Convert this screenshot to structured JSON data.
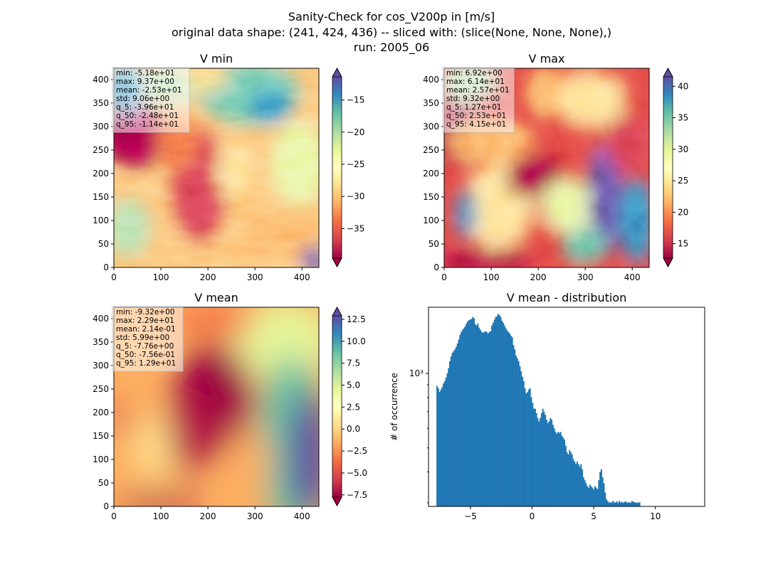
{
  "figure": {
    "title_lines": [
      "Sanity-Check for cos_V200p in [m/s]",
      "original data shape: (241, 424, 436) -- sliced with: (slice(None, None, None),)",
      "run: 2005_06"
    ]
  },
  "chart_data": [
    {
      "type": "heatmap",
      "title": "V min",
      "colormap": "Spectral",
      "xlim": [
        0,
        436
      ],
      "ylim": [
        0,
        424
      ],
      "xticks": [
        0,
        100,
        200,
        300,
        400
      ],
      "yticks": [
        0,
        50,
        100,
        150,
        200,
        250,
        300,
        350,
        400
      ],
      "colorbar": {
        "vmin": -39.6,
        "vmax": -11.4,
        "ticks": [
          -35,
          -30,
          -25,
          -20,
          -15
        ],
        "tick_labels": [
          "−35",
          "−30",
          "−25",
          "−20",
          "−15"
        ],
        "extend": "both"
      },
      "stats": [
        "min: -5.18e+01",
        "max: 9.37e+00",
        "mean: -2.53e+01",
        "std: 9.06e+00",
        "q_5: -3.96e+01",
        "q_50: -2.48e+01",
        "q_95: -1.14e+01"
      ]
    },
    {
      "type": "heatmap",
      "title": "V max",
      "colormap": "Spectral",
      "xlim": [
        0,
        436
      ],
      "ylim": [
        0,
        424
      ],
      "xticks": [
        0,
        100,
        200,
        300,
        400
      ],
      "yticks": [
        0,
        50,
        100,
        150,
        200,
        250,
        300,
        350,
        400
      ],
      "colorbar": {
        "vmin": 12.7,
        "vmax": 41.5,
        "ticks": [
          15,
          20,
          25,
          30,
          35,
          40
        ],
        "tick_labels": [
          "15",
          "20",
          "25",
          "30",
          "35",
          "40"
        ],
        "extend": "both"
      },
      "stats": [
        "min: 6.92e+00",
        "max: 6.14e+01",
        "mean: 2.57e+01",
        "std: 9.32e+00",
        "q_5: 1.27e+01",
        "q_50: 2.53e+01",
        "q_95: 4.15e+01"
      ]
    },
    {
      "type": "heatmap",
      "title": "V mean",
      "colormap": "Spectral",
      "xlim": [
        0,
        436
      ],
      "ylim": [
        0,
        424
      ],
      "xticks": [
        0,
        100,
        200,
        300,
        400
      ],
      "yticks": [
        0,
        50,
        100,
        150,
        200,
        250,
        300,
        350,
        400
      ],
      "colorbar": {
        "vmin": -7.76,
        "vmax": 12.9,
        "ticks": [
          -7.5,
          -5,
          -2.5,
          0,
          2.5,
          5,
          7.5,
          10,
          12.5
        ],
        "tick_labels": [
          "−7.5",
          "−5.0",
          "−2.5",
          "0.0",
          "2.5",
          "5.0",
          "7.5",
          "10.0",
          "12.5"
        ],
        "extend": "both"
      },
      "stats": [
        "min: -9.32e+00",
        "max: 2.29e+01",
        "mean: 2.14e-01",
        "std: 5.99e+00",
        "q_5: -7.76e+00",
        "q_50: -7.56e-01",
        "q_95: 1.29e+01"
      ]
    },
    {
      "type": "bar",
      "title": "V mean - distribution",
      "ylabel": "# of occurrence",
      "xlabel": "",
      "yscale": "log",
      "xlim": [
        -8.4,
        14.0
      ],
      "ylim": [
        290,
        1850
      ],
      "xticks": [
        -5,
        0,
        5,
        10
      ],
      "xtick_labels": [
        "−5",
        "0",
        "5",
        "10"
      ],
      "ytick_labels": [
        {
          "value": 1000,
          "label": "10³"
        }
      ],
      "bar_color": "#1f77b4",
      "bin_start": -7.76,
      "bin_width": 0.1033,
      "values": [
        890,
        870,
        840,
        860,
        880,
        910,
        930,
        960,
        1000,
        1050,
        1120,
        1170,
        1210,
        1230,
        1250,
        1280,
        1320,
        1370,
        1430,
        1470,
        1500,
        1520,
        1550,
        1590,
        1620,
        1640,
        1650,
        1660,
        1690,
        1670,
        1580,
        1560,
        1590,
        1530,
        1500,
        1470,
        1460,
        1470,
        1480,
        1470,
        1450,
        1470,
        1480,
        1560,
        1600,
        1650,
        1690,
        1700,
        1740,
        1720,
        1690,
        1630,
        1600,
        1560,
        1520,
        1490,
        1470,
        1450,
        1420,
        1400,
        1300,
        1250,
        1180,
        1150,
        1120,
        1070,
        1020,
        970,
        930,
        870,
        830,
        840,
        860,
        870,
        800,
        760,
        720,
        720,
        690,
        660,
        640,
        660,
        690,
        720,
        700,
        680,
        650,
        630,
        640,
        660,
        650,
        620,
        600,
        580,
        570,
        580,
        575,
        580,
        560,
        550,
        540,
        510,
        480,
        470,
        490,
        480,
        470,
        450,
        440,
        430,
        440,
        430,
        420,
        430,
        410,
        380,
        370,
        360,
        350,
        345,
        355,
        350,
        345,
        340,
        350,
        345,
        340,
        370,
        400,
        410,
        380,
        360,
        330,
        310,
        305,
        300,
        302,
        300,
        305,
        302,
        300,
        304,
        300,
        305,
        301,
        303,
        300,
        302,
        304,
        301,
        300,
        302,
        300,
        305,
        303,
        302,
        300,
        301,
        300,
        302
      ]
    }
  ]
}
